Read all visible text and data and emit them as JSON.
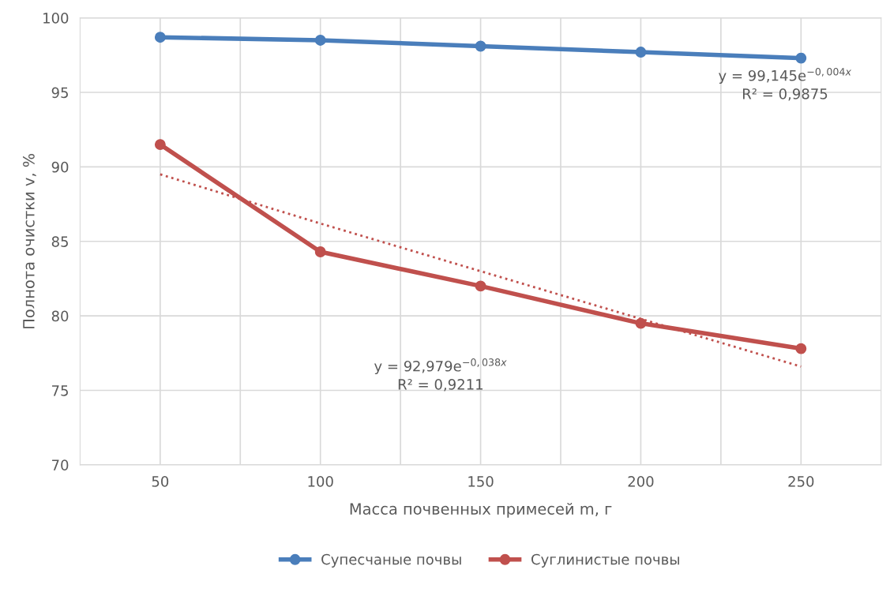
{
  "chart_data": {
    "type": "line",
    "xlabel": "Масса почвенных примесей m, г",
    "ylabel": "Полнота очистки v, %",
    "categories": [
      "50",
      "100",
      "150",
      "200",
      "250"
    ],
    "series": [
      {
        "name": "Супесчаные почвы",
        "color": "#4a7ebb",
        "values": [
          98.7,
          98.5,
          98.1,
          97.7,
          97.3
        ],
        "marker": "circle",
        "line_style": "solid"
      },
      {
        "name": "Суглинистые почвы",
        "color": "#c0504d",
        "values": [
          91.5,
          84.3,
          82.0,
          79.5,
          77.8
        ],
        "marker": "circle",
        "line_style": "solid"
      },
      {
        "color": "#c0504d",
        "values": [
          89.5,
          86.2,
          83.0,
          79.8,
          76.6
        ],
        "marker": "none",
        "line_style": "dotted"
      }
    ],
    "ylim": [
      70,
      100
    ],
    "yticks": [
      70,
      75,
      80,
      85,
      90,
      95,
      100
    ],
    "grid": true,
    "legend": "bottom",
    "annotations": [
      "y = 99,145e$^{−0,004x}$\nR² = 0,9875",
      "y = 92,979e$^{−0,038x}$\nR² = 0,9211"
    ]
  }
}
